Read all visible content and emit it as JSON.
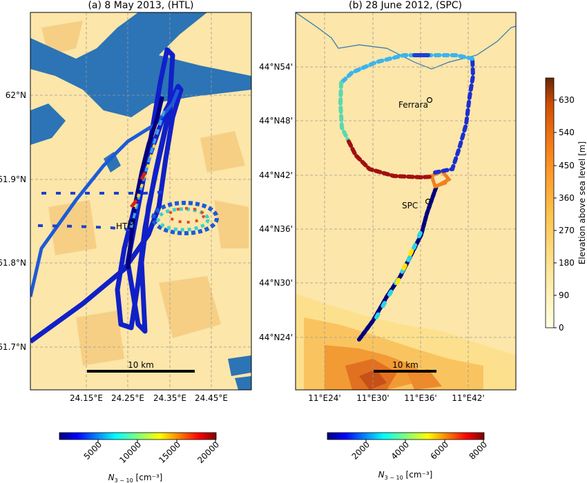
{
  "panel_a": {
    "title": "(a) 8 May 2013, (HTL)",
    "lat_labels": [
      "62°N",
      "61.9°N",
      "61.8°N",
      "61.7°N"
    ],
    "lon_labels": [
      "24.15°E",
      "24.25°E",
      "24.35°E",
      "24.45°E"
    ],
    "site_label": "HTL",
    "scale_label": "10 km",
    "colorbar": {
      "ticks": [
        "5000",
        "10000",
        "15000",
        "20000"
      ],
      "label": "N",
      "label_sub": "3 − 10",
      "label_unit": " [cm⁻³]"
    }
  },
  "panel_b": {
    "title": "(b) 28 June 2012, (SPC)",
    "lat_labels": [
      "44°N54'",
      "44°N48'",
      "44°N42'",
      "44°N36'",
      "44°N30'",
      "44°N24'"
    ],
    "lon_labels": [
      "11°E24'",
      "11°E30'",
      "11°E36'",
      "11°E42'"
    ],
    "city_label": "Ferrara",
    "site_label": "SPC",
    "scale_label": "10 km",
    "colorbar": {
      "ticks": [
        "2000",
        "4000",
        "6000",
        "8000"
      ],
      "label": "N",
      "label_sub": "3 − 10",
      "label_unit": " [cm⁻³]"
    }
  },
  "elevation_colorbar": {
    "ticks": [
      "0",
      "90",
      "180",
      "270",
      "360",
      "450",
      "540",
      "630"
    ],
    "label": "Elevation above sea level  [m]"
  },
  "colors": {
    "land": "#fce6a9",
    "land_dark": "#f6cf85",
    "water": "#2c74b5",
    "grid": "#999999"
  }
}
